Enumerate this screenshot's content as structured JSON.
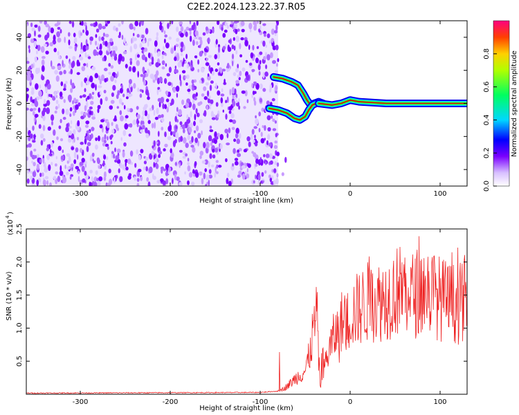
{
  "title": "C2E2.2024.123.22.37.R05",
  "chart_data": [
    {
      "type": "heatmap",
      "xlabel": "Height of straight line (km)",
      "ylabel": "Frequency (Hz)",
      "xlim": [
        -360,
        130
      ],
      "ylim": [
        -50,
        50
      ],
      "x_ticks": [
        -300,
        -200,
        -100,
        0,
        100
      ],
      "y_ticks": [
        -40,
        -20,
        0,
        20,
        40
      ],
      "colorbar": {
        "label": "Normalized spectral amplitude",
        "range": [
          0,
          1
        ],
        "ticks": [
          "0.0",
          "0.2",
          "0.4",
          "0.6",
          "0.8"
        ]
      },
      "noise_region_x": [
        -360,
        -80
      ],
      "signal_tracks": [
        {
          "x": [
            -85,
            -75,
            -65,
            -58,
            -52,
            -48,
            -44,
            -40,
            -35,
            -30
          ],
          "y": [
            16,
            15,
            13,
            11,
            6,
            2,
            -1,
            0,
            1,
            0
          ]
        },
        {
          "x": [
            -90,
            -80,
            -70,
            -62,
            -56,
            -50,
            -46,
            -42,
            -38
          ],
          "y": [
            -3,
            -4,
            -6,
            -9,
            -10,
            -8,
            -4,
            -1,
            0
          ]
        },
        {
          "x": [
            -35,
            -20,
            -10,
            -5,
            0,
            10,
            40,
            80,
            130
          ],
          "y": [
            0,
            -1,
            0,
            1,
            2,
            1,
            0,
            0,
            0
          ]
        }
      ],
      "grid": false
    },
    {
      "type": "line",
      "xlabel": "Height of straight line (km)",
      "ylabel": "SNR (10 * v/v)",
      "y_scale_label": "(x10",
      "y_scale_exponent": "4",
      "xlim": [
        -360,
        130
      ],
      "ylim": [
        0,
        2.5
      ],
      "x_ticks": [
        -300,
        -200,
        -100,
        0,
        100
      ],
      "y_ticks": [
        0.5,
        1.0,
        1.5,
        2.0,
        2.5
      ],
      "series": [
        {
          "color": "#ee2222",
          "x": [
            -360,
            -100,
            -80,
            -70,
            -60,
            -50,
            -45,
            -40,
            -37,
            -35,
            -33,
            -30,
            -28,
            -25,
            -20,
            -15,
            -12,
            -10,
            -5,
            0,
            5,
            10,
            15,
            20,
            30,
            40,
            50,
            60,
            70,
            80,
            90,
            100,
            110,
            120,
            130
          ],
          "y": [
            0.01,
            0.02,
            0.04,
            0.12,
            0.25,
            0.35,
            0.6,
            1.05,
            1.2,
            0.55,
            0.1,
            0.3,
            0.45,
            0.6,
            0.8,
            0.95,
            0.85,
            1.1,
            1.05,
            1.2,
            1.25,
            1.3,
            1.35,
            1.4,
            1.4,
            1.45,
            1.55,
            1.6,
            1.5,
            1.6,
            1.55,
            1.45,
            1.4,
            1.35,
            1.5
          ]
        }
      ],
      "grid": false
    }
  ]
}
